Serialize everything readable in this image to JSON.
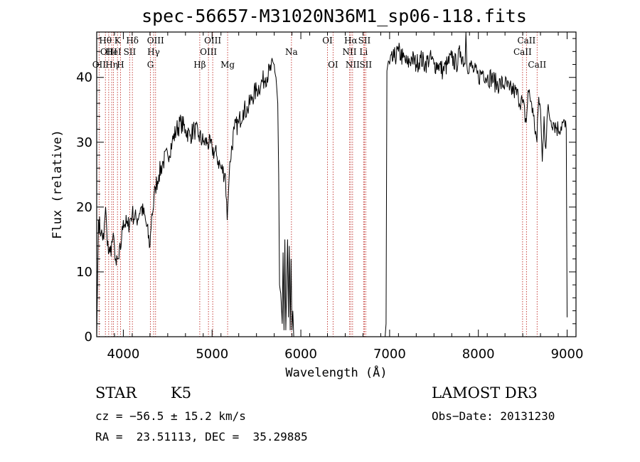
{
  "chart_data": {
    "type": "line",
    "title": "spec-56657-M31020N36M1_sp06-118.fits",
    "xlabel": "Wavelength (Å)",
    "ylabel": "Flux (relative)",
    "xlim": [
      3700,
      9100
    ],
    "ylim": [
      0,
      47
    ],
    "xticks": [
      4000,
      5000,
      6000,
      7000,
      8000,
      9000
    ],
    "yticks": [
      0,
      10,
      20,
      30,
      40
    ],
    "grid": false,
    "series": [
      {
        "x": [
          3700,
          3720,
          3750,
          3780,
          3800,
          3820,
          3850,
          3880,
          3900,
          3920,
          3950,
          3980,
          4000,
          4050,
          4100,
          4150,
          4200,
          4250,
          4300,
          4320,
          4340,
          4360,
          4400,
          4450,
          4500,
          4550,
          4600,
          4650,
          4700,
          4750,
          4800,
          4850,
          4900,
          4950,
          5000,
          5050,
          5100,
          5150,
          5170,
          5200,
          5250,
          5300,
          5350,
          5400,
          5450,
          5500,
          5550,
          5600,
          5650,
          5700,
          5720,
          5740,
          5750,
          5760,
          5780,
          5790,
          5800,
          5810,
          5820,
          5830,
          5850,
          5860,
          5870,
          5880,
          5890,
          5900,
          5910,
          5920,
          6950,
          6960,
          6970,
          6980,
          7000,
          7050,
          7100,
          7150,
          7200,
          7250,
          7300,
          7350,
          7400,
          7450,
          7500,
          7550,
          7600,
          7650,
          7700,
          7750,
          7800,
          7850,
          7860,
          7870,
          7900,
          7950,
          8000,
          8050,
          8100,
          8150,
          8200,
          8250,
          8300,
          8350,
          8400,
          8450,
          8500,
          8540,
          8560,
          8600,
          8620,
          8660,
          8680,
          8700,
          8720,
          8740,
          8760,
          8780,
          8800,
          8850,
          8900,
          8950,
          8990,
          9000
        ],
        "y": [
          0,
          18,
          16,
          15,
          20,
          14,
          13,
          15,
          14,
          11,
          12,
          15,
          18,
          17,
          19,
          18,
          20,
          18,
          14,
          19,
          20,
          23,
          25,
          27,
          28,
          30,
          32,
          33,
          32,
          31,
          32,
          31,
          30,
          30,
          29,
          28,
          26,
          25,
          18,
          27,
          32,
          33,
          35,
          35,
          37,
          38,
          39,
          40,
          41,
          42,
          40,
          36,
          25,
          8,
          5,
          2,
          13,
          1,
          15,
          1,
          15,
          3,
          14,
          1,
          12,
          1,
          4,
          0,
          0,
          2,
          41,
          42,
          42,
          43,
          44,
          43,
          42,
          43,
          42,
          43,
          42,
          43,
          42,
          42,
          41,
          42,
          43,
          42,
          44,
          42,
          47,
          42,
          42,
          41,
          40,
          41,
          40,
          40,
          39,
          39,
          39,
          38,
          38,
          37,
          36,
          33,
          38,
          36,
          34,
          30,
          37,
          35,
          27,
          34,
          29,
          35,
          34,
          33,
          32,
          33,
          32,
          3
        ]
      }
    ],
    "lines": [
      {
        "wl": 3727,
        "labels": [
          "OII"
        ],
        "row": 3
      },
      {
        "wl": 3798,
        "labels": [
          "Hθ"
        ],
        "row": 1
      },
      {
        "wl": 3835,
        "labels": [
          "OIII"
        ],
        "row": 2
      },
      {
        "wl": 3869,
        "labels": [
          "Hη"
        ],
        "row": 3
      },
      {
        "wl": 3889,
        "labels": [
          "HeI"
        ],
        "row": 2
      },
      {
        "wl": 3934,
        "labels": [
          "K"
        ],
        "row": 1
      },
      {
        "wl": 3968,
        "labels": [
          "H"
        ],
        "row": 3
      },
      {
        "wl": 4072,
        "labels": [
          "SII"
        ],
        "row": 2
      },
      {
        "wl": 4102,
        "labels": [
          "Hδ"
        ],
        "row": 1
      },
      {
        "wl": 4305,
        "labels": [
          "G"
        ],
        "row": 3
      },
      {
        "wl": 4341,
        "labels": [
          "Hγ"
        ],
        "row": 2
      },
      {
        "wl": 4363,
        "labels": [
          "OIII"
        ],
        "row": 1
      },
      {
        "wl": 4861,
        "labels": [
          "Hβ"
        ],
        "row": 3
      },
      {
        "wl": 4959,
        "labels": [
          "OIII"
        ],
        "row": 2
      },
      {
        "wl": 5007,
        "labels": [
          "OIII"
        ],
        "row": 1
      },
      {
        "wl": 5175,
        "labels": [
          "Mg"
        ],
        "row": 3
      },
      {
        "wl": 5894,
        "labels": [
          "Na"
        ],
        "row": 2
      },
      {
        "wl": 6300,
        "labels": [
          "OI"
        ],
        "row": 1
      },
      {
        "wl": 6363,
        "labels": [
          "OI"
        ],
        "row": 3
      },
      {
        "wl": 6548,
        "labels": [
          "NII"
        ],
        "row": 2
      },
      {
        "wl": 6563,
        "labels": [
          "Hα"
        ],
        "row": 1
      },
      {
        "wl": 6583,
        "labels": [
          "NII"
        ],
        "row": 3
      },
      {
        "wl": 6707,
        "labels": [
          "Li"
        ],
        "row": 2
      },
      {
        "wl": 6716,
        "labels": [
          "SII"
        ],
        "row": 1
      },
      {
        "wl": 6731,
        "labels": [
          "SII"
        ],
        "row": 3
      },
      {
        "wl": 8498,
        "labels": [
          "CaII"
        ],
        "row": 2
      },
      {
        "wl": 8542,
        "labels": [
          "CaII"
        ],
        "row": 1
      },
      {
        "wl": 8662,
        "labels": [
          "CaII"
        ],
        "row": 3
      }
    ]
  },
  "info": {
    "class_label": "STAR",
    "subclass_label": "K5",
    "survey": "LAMOST DR3",
    "cz": "cz = −56.5 ± 15.2 km/s",
    "obs_date": "Obs−Date: 20131230",
    "radec": "RA =  23.51113, DEC =  35.29885"
  }
}
